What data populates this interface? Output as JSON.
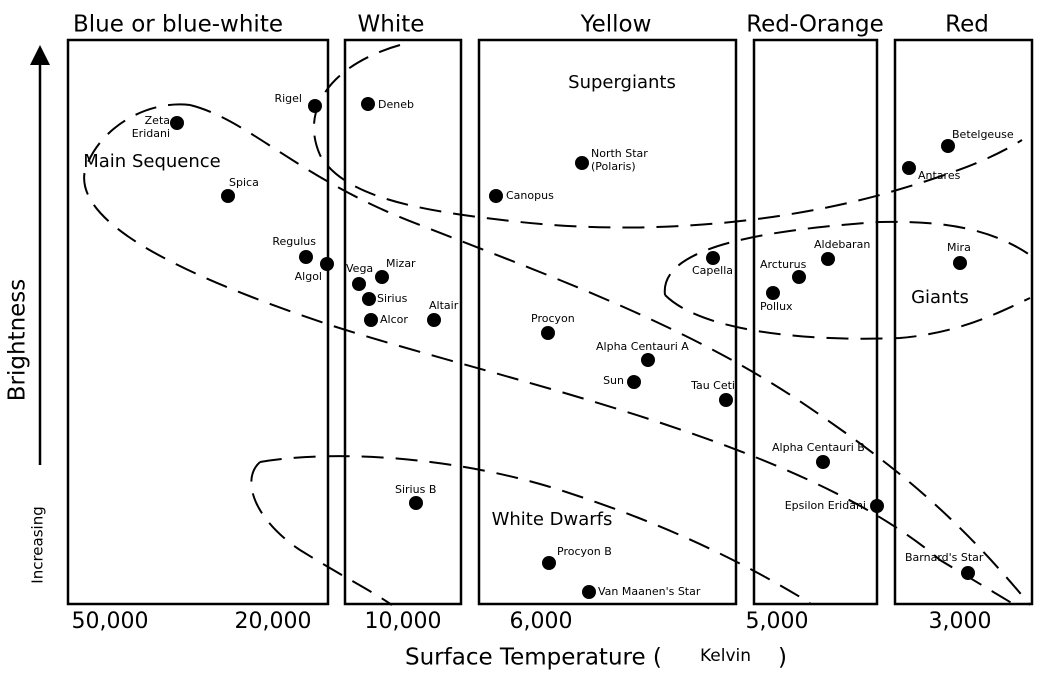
{
  "columns": [
    "Blue or blue-white",
    "White",
    "Yellow",
    "Red-Orange",
    "Red"
  ],
  "x_axis": {
    "ticks": [
      "50,000",
      "20,000",
      "10,000",
      "6,000",
      "5,000",
      "3,000"
    ],
    "title": "Surface Temperature (",
    "unit": "Kelvin",
    "title_end": ")"
  },
  "y_axis": {
    "title": "Brightness",
    "direction": "Increasing"
  },
  "regions": [
    "Supergiants",
    "Main Sequence",
    "Giants",
    "White Dwarfs"
  ],
  "stars": [
    {
      "label": [
        "Zeta",
        "Eridani"
      ]
    },
    {
      "label": [
        "Rigel"
      ]
    },
    {
      "label": [
        "Deneb"
      ]
    },
    {
      "label": [
        "Spica"
      ]
    },
    {
      "label": [
        "Regulus"
      ]
    },
    {
      "label": [
        "Algol"
      ]
    },
    {
      "label": [
        "Vega"
      ]
    },
    {
      "label": [
        "Mizar"
      ]
    },
    {
      "label": [
        "Sirius"
      ]
    },
    {
      "label": [
        "Alcor"
      ]
    },
    {
      "label": [
        "Altair"
      ]
    },
    {
      "label": [
        "Sirius B"
      ]
    },
    {
      "label": [
        "Canopus"
      ]
    },
    {
      "label": [
        "North Star",
        "(Polaris)"
      ]
    },
    {
      "label": [
        "Procyon"
      ]
    },
    {
      "label": [
        "Alpha Centauri A"
      ]
    },
    {
      "label": [
        "Sun"
      ]
    },
    {
      "label": [
        "Tau Ceti"
      ]
    },
    {
      "label": [
        "Capella"
      ]
    },
    {
      "label": [
        "Procyon B"
      ]
    },
    {
      "label": [
        "Van Maanen's Star"
      ]
    },
    {
      "label": [
        "Aldebaran"
      ]
    },
    {
      "label": [
        "Arcturus"
      ]
    },
    {
      "label": [
        "Pollux"
      ]
    },
    {
      "label": [
        "Alpha Centauri B"
      ]
    },
    {
      "label": [
        "Epsilon Eridani"
      ]
    },
    {
      "label": [
        "Betelgeuse"
      ]
    },
    {
      "label": [
        "Antares"
      ]
    },
    {
      "label": [
        "Mira"
      ]
    },
    {
      "label": [
        "Barnard's Star"
      ]
    }
  ]
}
